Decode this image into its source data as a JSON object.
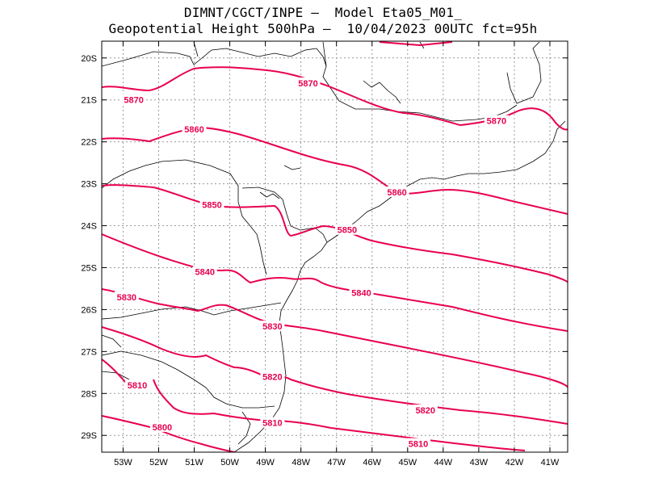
{
  "title": {
    "line1": "DIMNT/CGCT/INPE —  Model Eta05_M01_",
    "line2": "Geopotential Height 500hPa —  10/04/2023 00UTC fct=95h"
  },
  "colors": {
    "contour": "#e8004f",
    "border": "#000000",
    "grid": "#9a9a9a"
  },
  "map": {
    "lon_range": [
      -53.6,
      -40.5
    ],
    "lat_range": [
      -29.4,
      -19.6
    ],
    "lat_ticks": [
      "20S",
      "21S",
      "22S",
      "23S",
      "24S",
      "25S",
      "26S",
      "27S",
      "28S",
      "29S"
    ],
    "lon_ticks": [
      "53W",
      "52W",
      "51W",
      "50W",
      "49W",
      "48W",
      "47W",
      "46W",
      "45W",
      "44W",
      "43W",
      "42W",
      "41W"
    ],
    "contour_levels": [
      "5870",
      "5860",
      "5850",
      "5840",
      "5830",
      "5820",
      "5810",
      "5800"
    ],
    "contour_labels": [
      {
        "text": "5870",
        "lon": -52.7,
        "lat": -21.0
      },
      {
        "text": "5870",
        "lon": -47.8,
        "lat": -20.6
      },
      {
        "text": "5870",
        "lon": -42.5,
        "lat": -21.5
      },
      {
        "text": "5860",
        "lon": -51.0,
        "lat": -21.7
      },
      {
        "text": "5860",
        "lon": -45.3,
        "lat": -23.2
      },
      {
        "text": "5850",
        "lon": -50.5,
        "lat": -23.5
      },
      {
        "text": "5850",
        "lon": -46.7,
        "lat": -24.1
      },
      {
        "text": "5840",
        "lon": -50.7,
        "lat": -25.1
      },
      {
        "text": "5840",
        "lon": -46.3,
        "lat": -25.6
      },
      {
        "text": "5830",
        "lon": -52.9,
        "lat": -25.7
      },
      {
        "text": "5830",
        "lon": -48.8,
        "lat": -26.4
      },
      {
        "text": "5820",
        "lon": -48.8,
        "lat": -27.6
      },
      {
        "text": "5820",
        "lon": -44.5,
        "lat": -28.4
      },
      {
        "text": "5810",
        "lon": -52.6,
        "lat": -27.8
      },
      {
        "text": "5810",
        "lon": -48.8,
        "lat": -28.7
      },
      {
        "text": "5810",
        "lon": -44.7,
        "lat": -29.2
      },
      {
        "text": "5800",
        "lon": -51.9,
        "lat": -28.8
      }
    ]
  }
}
